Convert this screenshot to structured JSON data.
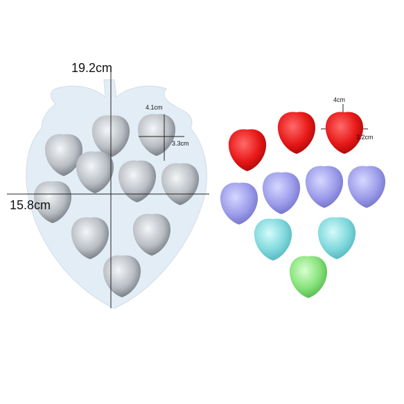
{
  "mold": {
    "width_label": "19.2cm",
    "height_label": "15.8cm",
    "cavity_width_label": "4.1cm",
    "cavity_height_label": "3.3cm"
  },
  "samples": {
    "width_label": "4cm",
    "height_label": "3.2cm"
  }
}
